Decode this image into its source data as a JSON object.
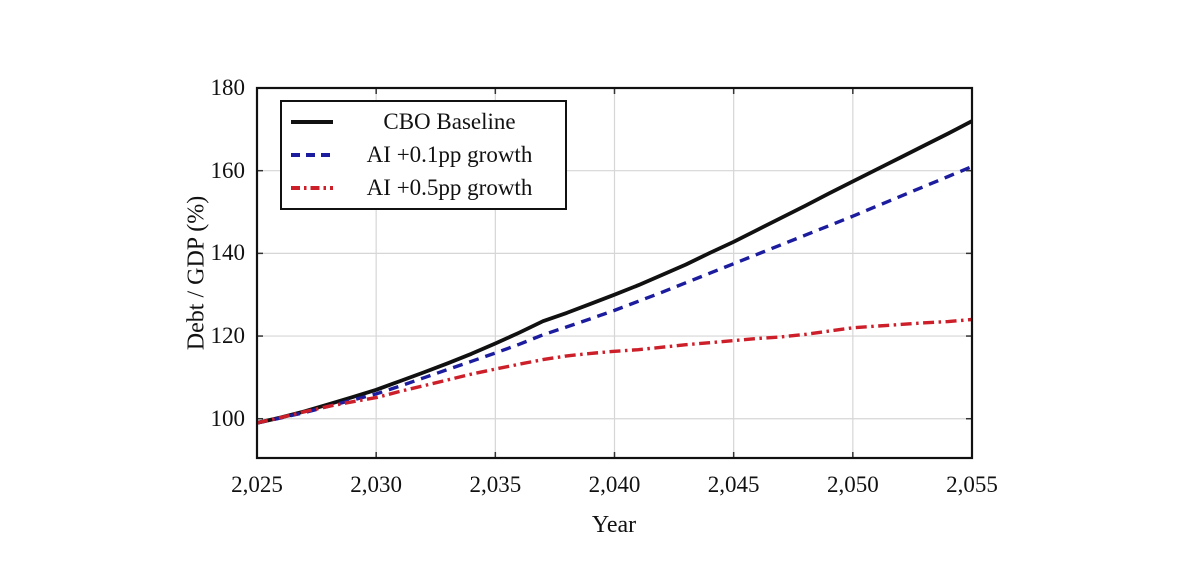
{
  "chart_data": {
    "type": "line",
    "title": "",
    "xlabel": "Year",
    "ylabel": "Debt / GDP (%)",
    "xlim": [
      2025,
      2055
    ],
    "ylim": [
      90.5,
      180
    ],
    "grid": true,
    "legend_position": "top-left",
    "x_tick_labels": [
      "2,025",
      "2,030",
      "2,035",
      "2,040",
      "2,045",
      "2,050",
      "2,055"
    ],
    "x_tick_values": [
      2025,
      2030,
      2035,
      2040,
      2045,
      2050,
      2055
    ],
    "y_tick_labels": [
      "180",
      "160",
      "140",
      "120",
      "100"
    ],
    "y_tick_values": [
      180,
      160,
      140,
      120,
      100
    ],
    "x": [
      2025,
      2026,
      2027,
      2028,
      2029,
      2030,
      2031,
      2032,
      2033,
      2034,
      2035,
      2036,
      2037,
      2038,
      2039,
      2040,
      2041,
      2042,
      2043,
      2044,
      2045,
      2046,
      2047,
      2048,
      2049,
      2050,
      2051,
      2052,
      2053,
      2054,
      2055
    ],
    "series": [
      {
        "name": "CBO Baseline",
        "color": "#111111",
        "style": "solid",
        "values": [
          99,
          100.3,
          101.8,
          103.5,
          105.2,
          107,
          109.1,
          111.2,
          113.4,
          115.7,
          118.2,
          120.8,
          123.6,
          125.6,
          127.8,
          130,
          132.3,
          134.8,
          137.3,
          140.1,
          142.8,
          145.7,
          148.6,
          151.5,
          154.5,
          157.4,
          160.3,
          163.2,
          166.1,
          169,
          172
        ]
      },
      {
        "name": "AI +0.1pp growth",
        "color": "#1c1c9e",
        "style": "dashed",
        "values": [
          99,
          100.2,
          101.5,
          103,
          104.5,
          106,
          107.9,
          109.9,
          111.9,
          113.9,
          115.9,
          118,
          120.3,
          122.2,
          124.2,
          126.2,
          128.4,
          130.6,
          132.9,
          135.2,
          137.5,
          139.8,
          142.1,
          144.4,
          146.7,
          149,
          151.4,
          153.8,
          156.2,
          158.6,
          161
        ]
      },
      {
        "name": "AI +0.5pp growth",
        "color": "#cc1f2a",
        "style": "dashdot",
        "values": [
          99,
          100.3,
          101.7,
          103,
          104.1,
          105.1,
          106.6,
          108,
          109.4,
          110.8,
          112,
          113.2,
          114.3,
          115.2,
          115.8,
          116.3,
          116.7,
          117.3,
          117.9,
          118.4,
          118.9,
          119.4,
          119.8,
          120.4,
          121.2,
          122,
          122.4,
          122.8,
          123.2,
          123.5,
          124
        ]
      }
    ],
    "grid_color": "#d6d6d6",
    "frame_color": "#111111"
  }
}
